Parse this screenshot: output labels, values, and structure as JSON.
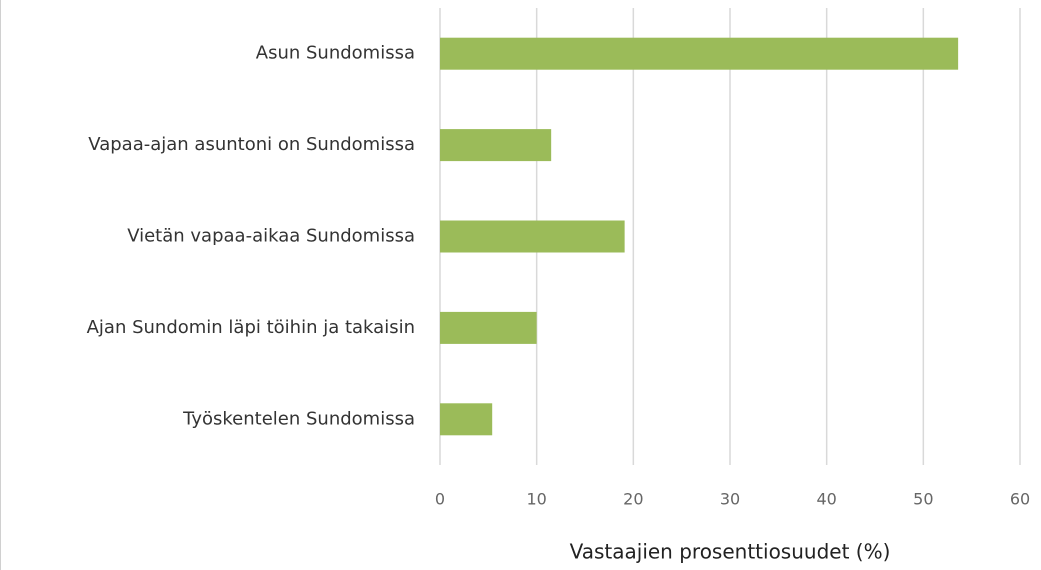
{
  "chart_data": {
    "type": "bar",
    "orientation": "horizontal",
    "categories": [
      "Asun Sundomissa",
      "Vapaa-ajan asuntoni on Sundomissa",
      "Vietän vapaa-aikaa Sundomissa",
      "Ajan Sundomin läpi töihin ja takaisin",
      "Työskentelen Sundomissa"
    ],
    "values": [
      53.6,
      11.5,
      19.1,
      10.0,
      5.4
    ],
    "color": "#9bbb59",
    "xlabel": "Vastaajien prosenttiosuudet (%)",
    "xlim": [
      0,
      60
    ],
    "xticks": [
      0,
      10,
      20,
      30,
      40,
      50,
      60
    ],
    "grid": true
  }
}
